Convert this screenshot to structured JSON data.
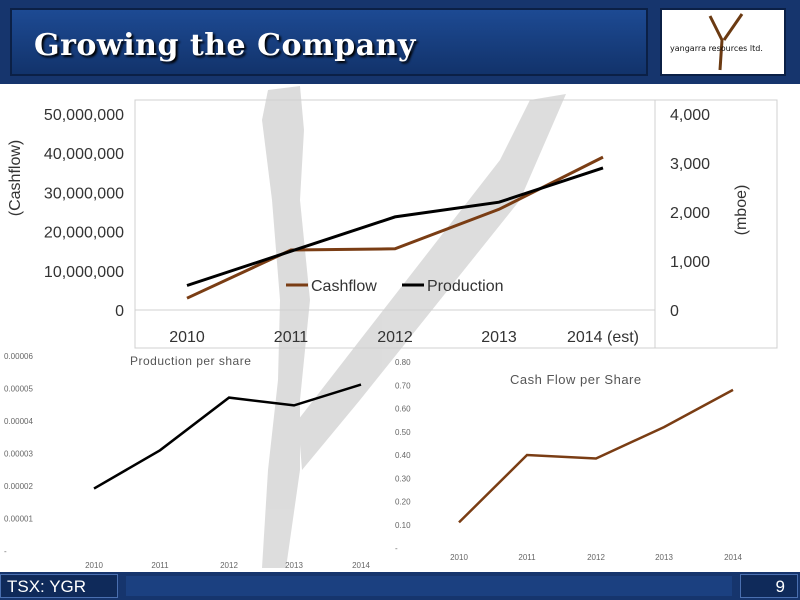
{
  "slide": {
    "title": "Growing the Company",
    "logo_text": "yangarra resources ltd.",
    "footer_ticker": "TSX: YGR",
    "page_number": "9"
  },
  "colors": {
    "header_blue": "#16356d",
    "cashflow": "#7a3d14",
    "production": "#000000",
    "watermark": "#d9d9d9"
  },
  "chart_data": [
    {
      "type": "line",
      "title": "",
      "categories": [
        "2010",
        "2011",
        "2012",
        "2013",
        "2014 (est)"
      ],
      "ylabel": "(Cashflow)",
      "y2label": "(mboe)",
      "ylim": [
        0,
        50000000
      ],
      "y2lim": [
        0,
        4000
      ],
      "y_ticks": [
        "0",
        "10,000,000",
        "20,000,000",
        "30,000,000",
        "40,000,000",
        "50,000,000"
      ],
      "y2_ticks": [
        "0",
        "1,000",
        "2,000",
        "3,000",
        "4,000"
      ],
      "series": [
        {
          "name": "Cashflow",
          "axis": "left",
          "color": "#7a3d14",
          "values": [
            3000000,
            15300000,
            15600000,
            25700000,
            39000000
          ]
        },
        {
          "name": "Production",
          "axis": "right",
          "color": "#000000",
          "values": [
            500,
            1200,
            1900,
            2200,
            2900
          ]
        }
      ],
      "legend": "bottom-center",
      "grid": false
    },
    {
      "type": "line",
      "title": "Production per share",
      "categories": [
        "2010",
        "2011",
        "2012",
        "2013",
        "2014"
      ],
      "ylim": [
        0,
        6e-05
      ],
      "y_ticks": [
        "-",
        "0.00001",
        "0.00002",
        "0.00003",
        "0.00004",
        "0.00005",
        "0.00006"
      ],
      "series": [
        {
          "color": "#000000",
          "values": [
            1.92e-05,
            3.1e-05,
            4.72e-05,
            4.48e-05,
            5.12e-05
          ]
        }
      ],
      "grid": false
    },
    {
      "type": "line",
      "title": "Cash Flow per Share",
      "categories": [
        "2010",
        "2011",
        "2012",
        "2013",
        "2014"
      ],
      "ylim": [
        0,
        0.8
      ],
      "y_ticks": [
        "-",
        "0.10",
        "0.20",
        "0.30",
        "0.40",
        "0.50",
        "0.60",
        "0.70",
        "0.80"
      ],
      "series": [
        {
          "color": "#7a3d14",
          "values": [
            0.11,
            0.4,
            0.385,
            0.52,
            0.68
          ]
        }
      ],
      "grid": false
    }
  ]
}
